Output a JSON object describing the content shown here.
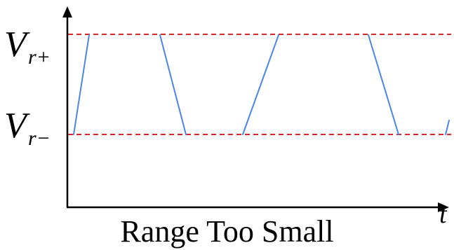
{
  "title": "Range Too Small",
  "axes": {
    "x_label": "t"
  },
  "levels": {
    "upper": {
      "symbol": "V",
      "subscript": "r+"
    },
    "lower": {
      "symbol": "V",
      "subscript": "r−"
    }
  },
  "colors": {
    "axis": "#000000",
    "reference_line": "#d62728",
    "signal": "#4a86e8"
  }
}
